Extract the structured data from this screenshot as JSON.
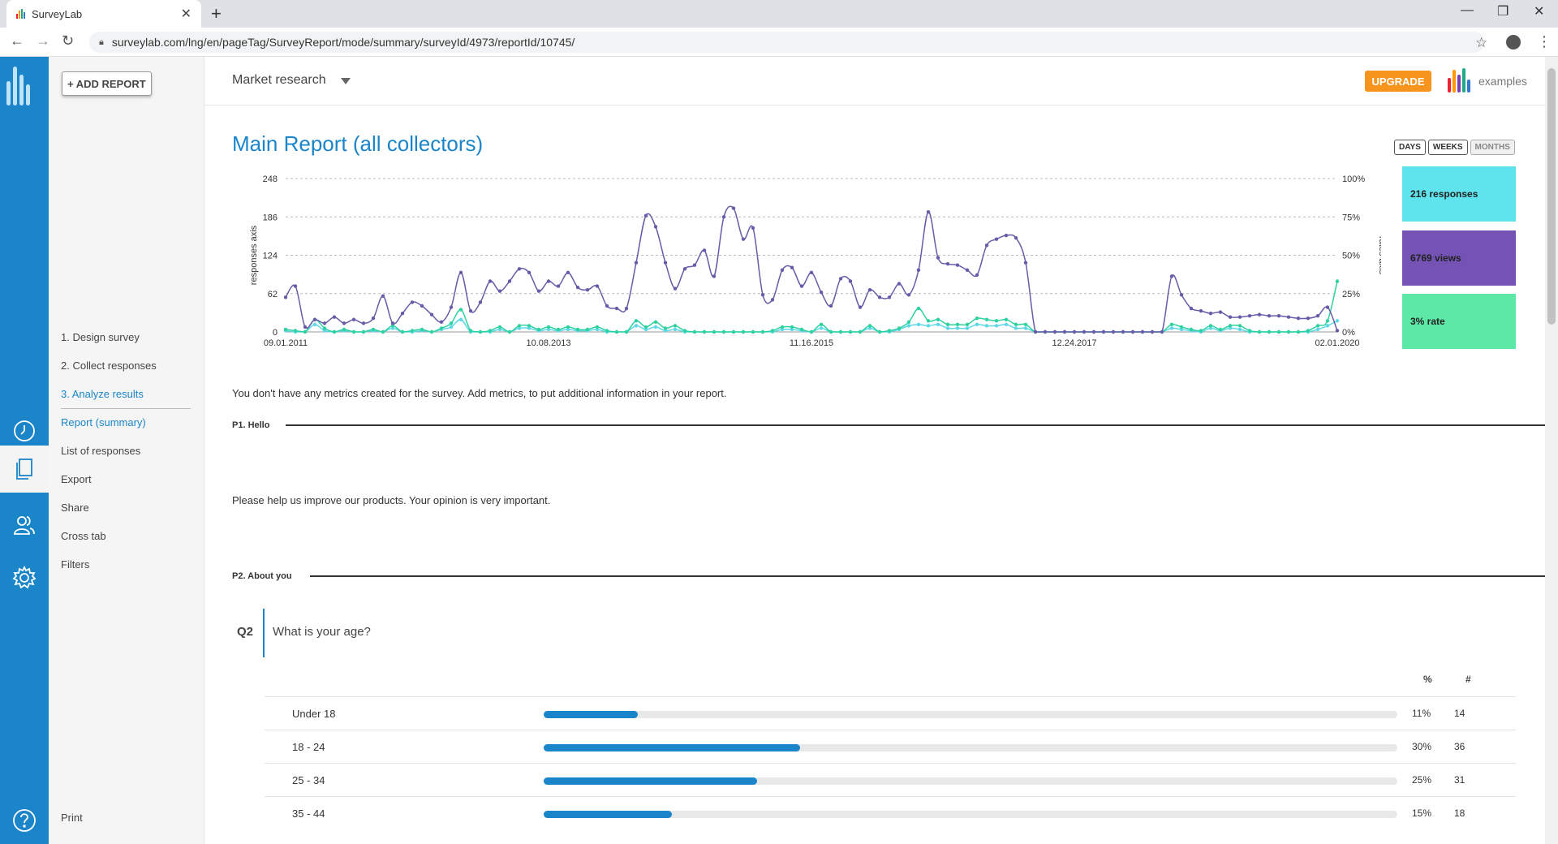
{
  "browser": {
    "tab_title": "SurveyLab",
    "url": "surveylab.com/lng/en/pageTag/SurveyReport/mode/summary/surveyId/4973/reportId/10745/"
  },
  "sidebar": {
    "add_report_label": "+ ADD REPORT",
    "steps": [
      "1. Design survey",
      "2. Collect responses",
      "3. Analyze results"
    ],
    "sub_items": [
      "Report (summary)",
      "List of responses",
      "Export",
      "Share",
      "Cross tab",
      "Filters"
    ],
    "print_label": "Print"
  },
  "header": {
    "survey_name": "Market research",
    "upgrade_label": "UPGRADE",
    "examples_label": "examples"
  },
  "report": {
    "title": "Main Report (all collectors)",
    "periods": [
      "DAYS",
      "WEEKS",
      "MONTHS"
    ],
    "active_period": "MONTHS",
    "stats": {
      "responses": "216 responses",
      "views": "6769 views",
      "rate": "3% rate"
    },
    "no_metrics_note": "You don't have any metrics created for the survey. Add metrics, to put additional information in your report."
  },
  "chart_data": {
    "type": "line",
    "ylabel": "responses axis",
    "y2label": "rates axis",
    "ylim": [
      0,
      248
    ],
    "y2lim": [
      0,
      100
    ],
    "y_ticks": [
      "248",
      "186",
      "124",
      "62",
      "0"
    ],
    "y2_ticks": [
      "100%",
      "75%",
      "50%",
      "25%",
      "0%"
    ],
    "x_tick_labels": [
      "09.01.2011",
      "10.08.2013",
      "11.16.2015",
      "12.24.2017",
      "02.01.2020"
    ],
    "grid": true,
    "series": [
      {
        "color": "#6a5aa8",
        "axis": "left",
        "values": [
          56,
          74,
          8,
          20,
          14,
          24,
          14,
          20,
          14,
          22,
          58,
          14,
          30,
          48,
          42,
          28,
          16,
          40,
          96,
          34,
          48,
          82,
          66,
          82,
          102,
          96,
          66,
          82,
          74,
          96,
          72,
          68,
          74,
          42,
          38,
          38,
          112,
          188,
          170,
          112,
          70,
          102,
          108,
          132,
          90,
          186,
          200,
          150,
          168,
          60,
          52,
          100,
          104,
          74,
          96,
          64,
          42,
          86,
          82,
          40,
          68,
          56,
          56,
          78,
          60,
          100,
          194,
          120,
          110,
          108,
          100,
          92,
          140,
          150,
          156,
          152,
          112,
          0,
          0,
          0,
          0,
          0,
          0,
          0,
          0,
          0,
          0,
          0,
          0,
          0,
          0,
          90,
          60,
          38,
          34,
          30,
          32,
          24,
          24,
          26,
          28,
          26,
          26,
          24,
          22,
          22,
          26,
          40,
          2
        ]
      },
      {
        "color": "#2fd1a0",
        "axis": "left",
        "values": [
          4,
          2,
          0,
          20,
          6,
          0,
          4,
          0,
          0,
          4,
          0,
          10,
          0,
          2,
          4,
          0,
          6,
          14,
          36,
          2,
          0,
          2,
          8,
          0,
          10,
          10,
          4,
          8,
          4,
          8,
          4,
          4,
          8,
          2,
          0,
          0,
          18,
          8,
          16,
          6,
          10,
          2,
          0,
          0,
          0,
          0,
          0,
          0,
          0,
          0,
          2,
          8,
          8,
          4,
          0,
          12,
          0,
          0,
          0,
          0,
          10,
          0,
          2,
          6,
          16,
          38,
          18,
          20,
          12,
          12,
          12,
          22,
          20,
          18,
          20,
          12,
          12,
          0,
          0,
          0,
          0,
          0,
          0,
          0,
          0,
          0,
          0,
          0,
          0,
          0,
          0,
          12,
          8,
          4,
          2,
          10,
          4,
          10,
          10,
          2,
          0,
          0,
          0,
          0,
          0,
          2,
          10,
          18,
          82
        ]
      },
      {
        "color": "#5ed8e6",
        "axis": "left",
        "values": [
          2,
          0,
          0,
          12,
          2,
          0,
          2,
          0,
          0,
          2,
          0,
          6,
          0,
          0,
          2,
          0,
          4,
          8,
          20,
          0,
          0,
          0,
          4,
          0,
          6,
          6,
          2,
          4,
          2,
          4,
          2,
          2,
          4,
          0,
          0,
          0,
          10,
          4,
          8,
          2,
          4,
          0,
          0,
          0,
          0,
          0,
          0,
          0,
          0,
          0,
          0,
          4,
          4,
          2,
          0,
          6,
          0,
          0,
          0,
          0,
          6,
          0,
          0,
          4,
          10,
          12,
          10,
          12,
          6,
          6,
          6,
          12,
          10,
          10,
          12,
          6,
          6,
          0,
          0,
          0,
          0,
          0,
          0,
          0,
          0,
          0,
          0,
          0,
          0,
          0,
          0,
          6,
          4,
          2,
          0,
          6,
          2,
          6,
          4,
          0,
          0,
          0,
          0,
          0,
          0,
          0,
          4,
          10,
          18
        ]
      }
    ]
  },
  "pages": [
    {
      "header": "P1. Hello",
      "text": "Please help us improve our products. Your opinion is very important."
    },
    {
      "header": "P2. About you"
    }
  ],
  "question": {
    "number": "Q2",
    "text": "What is your age?",
    "col_pct": "%",
    "col_count": "#",
    "answers": [
      {
        "label": "Under 18",
        "pct": "11%",
        "pct_value": 11,
        "count": "14"
      },
      {
        "label": "18 - 24",
        "pct": "30%",
        "pct_value": 30,
        "count": "36"
      },
      {
        "label": "25 - 34",
        "pct": "25%",
        "pct_value": 25,
        "count": "31"
      },
      {
        "label": "35 - 44",
        "pct": "15%",
        "pct_value": 15,
        "count": "18"
      }
    ]
  }
}
